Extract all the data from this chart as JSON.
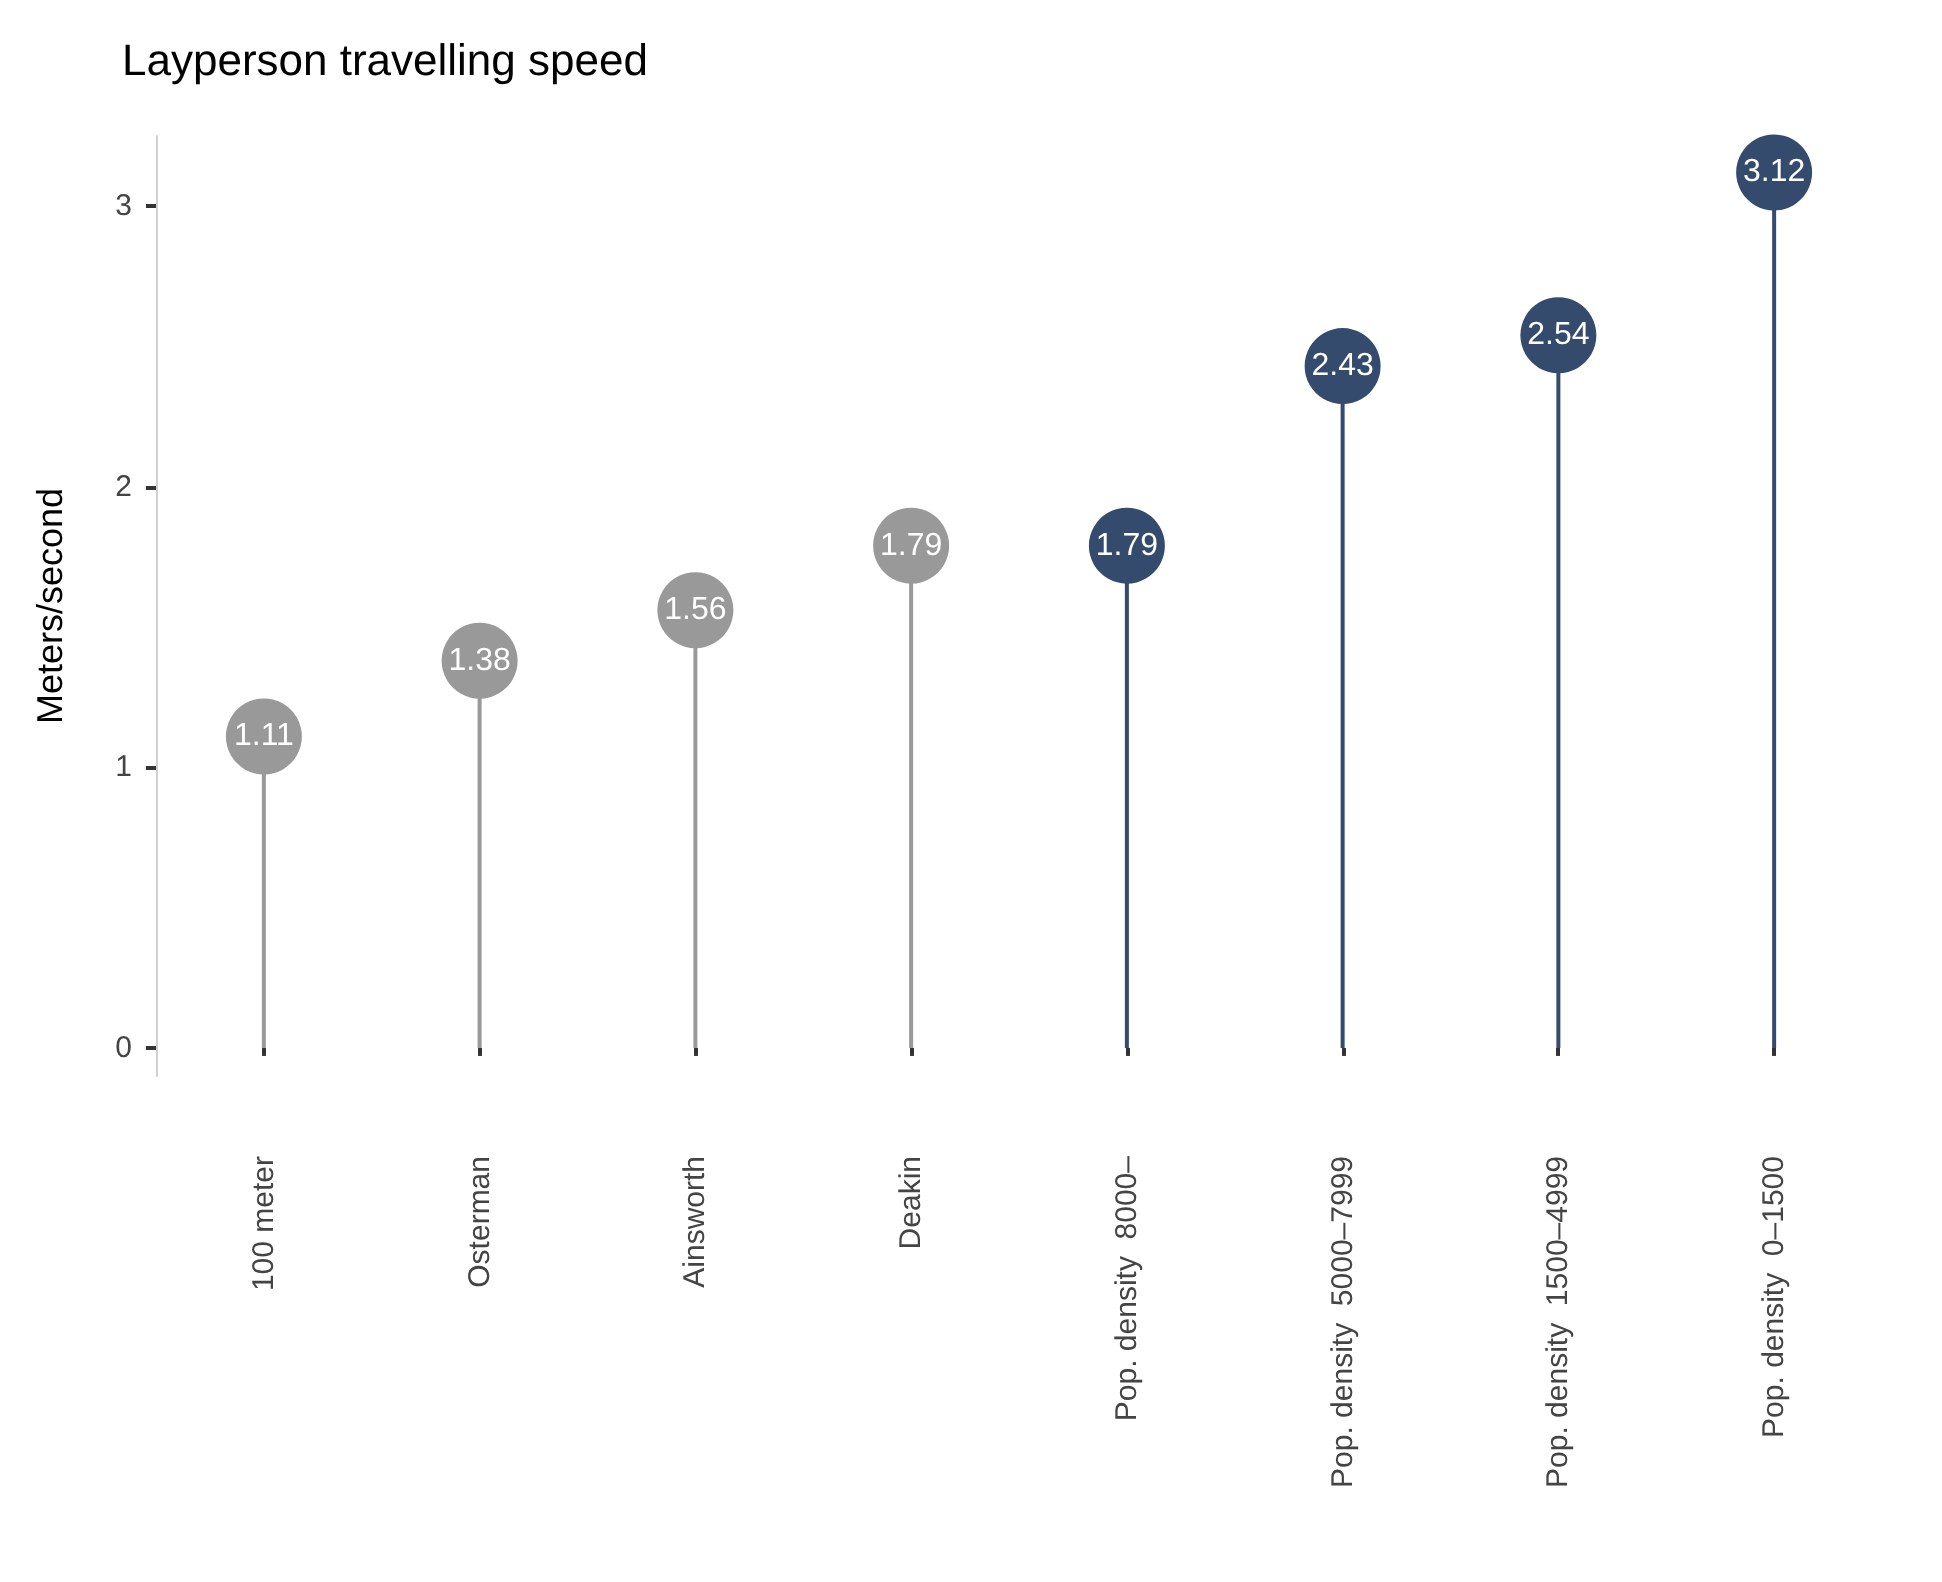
{
  "chart_data": {
    "type": "lollipop",
    "title": "Layperson travelling speed",
    "ylabel": "Meters/second",
    "categories": [
      "100 meter",
      "Osterman",
      "Ainsworth",
      "Deakin",
      "Pop. density  8000–",
      "Pop. density  5000–7999",
      "Pop. density  1500–4999",
      "Pop. density  0–1500"
    ],
    "values": [
      1.11,
      1.38,
      1.56,
      1.79,
      1.79,
      2.43,
      2.54,
      3.12
    ],
    "colors": [
      "#999999",
      "#999999",
      "#999999",
      "#999999",
      "#344b6e",
      "#344b6e",
      "#344b6e",
      "#344b6e"
    ],
    "ylim": [
      -0.1,
      3.25
    ],
    "yticks": [
      0,
      1,
      2,
      3
    ],
    "data_labels": true
  }
}
